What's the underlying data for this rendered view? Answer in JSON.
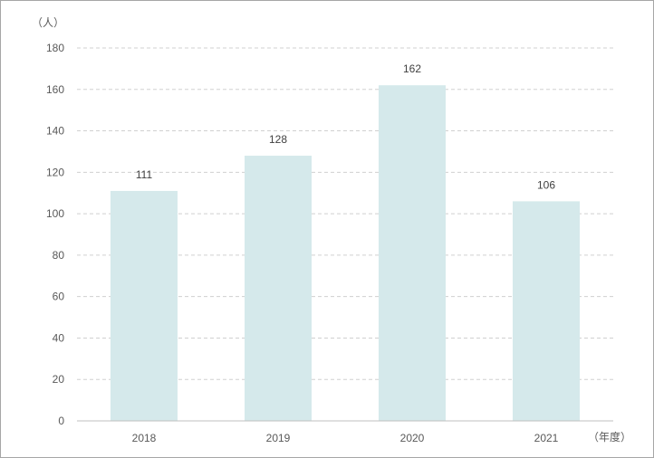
{
  "chart_data": {
    "type": "bar",
    "categories": [
      "2018",
      "2019",
      "2020",
      "2021"
    ],
    "values": [
      111,
      128,
      162,
      106
    ],
    "data_labels": [
      "111",
      "128",
      "162",
      "106"
    ],
    "ylabel": "（人）",
    "xlabel": "（年度）",
    "ylim": [
      0,
      180
    ],
    "yticks": [
      0,
      20,
      40,
      60,
      80,
      100,
      120,
      140,
      160,
      180
    ],
    "ytick_labels": [
      "0",
      "20",
      "40",
      "60",
      "80",
      "100",
      "120",
      "140",
      "160",
      "180"
    ],
    "grid": true,
    "bar_color": "#d5e9eb",
    "grid_color": "#d0d0d0",
    "axis_color": "#bfbfbf"
  }
}
